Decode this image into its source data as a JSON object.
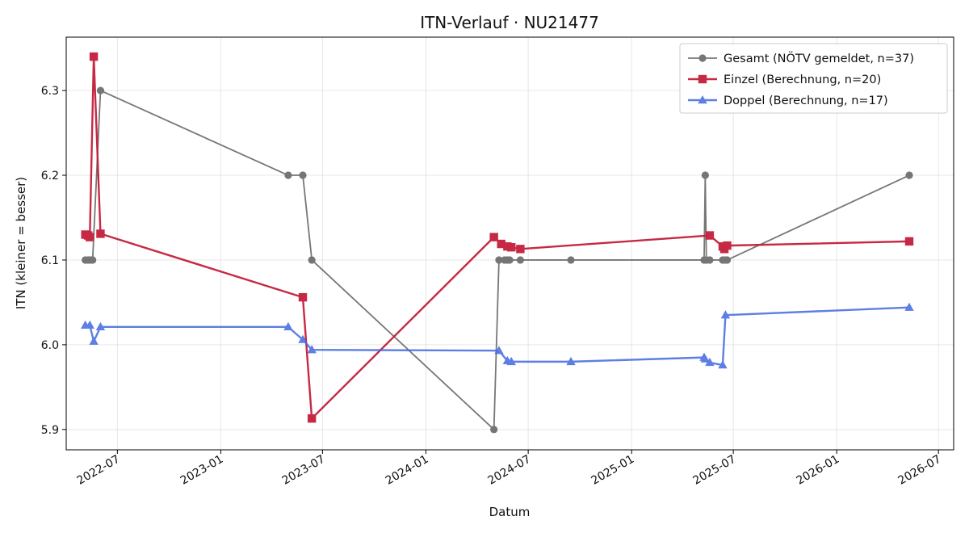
{
  "chart_data": {
    "type": "line",
    "title": "ITN-Verlauf · NU21477",
    "xlabel": "Datum",
    "ylabel": "ITN  (kleiner = besser)",
    "x_type": "date",
    "xlim": [
      "2022-04-01",
      "2026-07-28"
    ],
    "ylim": [
      5.876,
      6.363
    ],
    "x_ticks": [
      "2022-07-01",
      "2023-01-01",
      "2023-07-01",
      "2024-01-01",
      "2024-07-01",
      "2025-01-01",
      "2025-07-01",
      "2026-01-01",
      "2026-07-01"
    ],
    "x_tick_labels": [
      "2022-07",
      "2023-01",
      "2023-07",
      "2024-01",
      "2024-07",
      "2025-01",
      "2025-07",
      "2026-01",
      "2026-07"
    ],
    "y_ticks": [
      5.9,
      6.0,
      6.1,
      6.2,
      6.3
    ],
    "y_tick_labels": [
      "5.9",
      "6.0",
      "6.1",
      "6.2",
      "6.3"
    ],
    "grid": true,
    "legend_position": "top-right",
    "series": [
      {
        "name": "Gesamt (NÖTV gemeldet, n=37)",
        "color": "#555555",
        "marker": "circle",
        "line_width": 1.8,
        "opacity": 0.8,
        "points": [
          [
            "2022-05-05",
            6.1
          ],
          [
            "2022-05-10",
            6.1
          ],
          [
            "2022-05-13",
            6.1
          ],
          [
            "2022-05-16",
            6.1
          ],
          [
            "2022-05-18",
            6.1
          ],
          [
            "2022-06-01",
            6.3
          ],
          [
            "2023-05-01",
            6.2
          ],
          [
            "2023-05-27",
            6.2
          ],
          [
            "2023-06-12",
            6.1
          ],
          [
            "2024-05-01",
            5.9
          ],
          [
            "2024-05-10",
            6.1
          ],
          [
            "2024-05-20",
            6.1
          ],
          [
            "2024-05-25",
            6.1
          ],
          [
            "2024-05-29",
            6.1
          ],
          [
            "2024-06-17",
            6.1
          ],
          [
            "2024-09-15",
            6.1
          ],
          [
            "2025-05-10",
            6.1
          ],
          [
            "2025-05-12",
            6.2
          ],
          [
            "2025-05-14",
            6.1
          ],
          [
            "2025-05-20",
            6.1
          ],
          [
            "2025-06-12",
            6.1
          ],
          [
            "2025-06-17",
            6.1
          ],
          [
            "2025-06-20",
            6.1
          ],
          [
            "2026-05-10",
            6.2
          ]
        ]
      },
      {
        "name": "Einzel (Berechnung, n=20)",
        "color": "#c41e3a",
        "marker": "square",
        "line_width": 2.4,
        "opacity": 0.95,
        "points": [
          [
            "2022-05-05",
            6.13
          ],
          [
            "2022-05-10",
            6.129
          ],
          [
            "2022-05-13",
            6.127
          ],
          [
            "2022-05-20",
            6.34
          ],
          [
            "2022-06-01",
            6.131
          ],
          [
            "2023-05-27",
            6.056
          ],
          [
            "2023-06-12",
            5.913
          ],
          [
            "2024-05-01",
            6.127
          ],
          [
            "2024-05-14",
            6.119
          ],
          [
            "2024-05-25",
            6.116
          ],
          [
            "2024-06-01",
            6.115
          ],
          [
            "2024-06-17",
            6.113
          ],
          [
            "2025-05-20",
            6.129
          ],
          [
            "2025-06-12",
            6.116
          ],
          [
            "2025-06-15",
            6.113
          ],
          [
            "2025-06-20",
            6.117
          ],
          [
            "2026-05-10",
            6.122
          ]
        ]
      },
      {
        "name": "Doppel (Berechnung, n=17)",
        "color": "#4169e1",
        "marker": "triangle",
        "line_width": 2.4,
        "opacity": 0.85,
        "points": [
          [
            "2022-05-05",
            6.023
          ],
          [
            "2022-05-13",
            6.023
          ],
          [
            "2022-05-20",
            6.004
          ],
          [
            "2022-06-01",
            6.021
          ],
          [
            "2023-05-01",
            6.021
          ],
          [
            "2023-05-27",
            6.006
          ],
          [
            "2023-06-12",
            5.994
          ],
          [
            "2024-05-10",
            5.993
          ],
          [
            "2024-05-25",
            5.981
          ],
          [
            "2024-06-01",
            5.98
          ],
          [
            "2024-09-15",
            5.98
          ],
          [
            "2025-05-10",
            5.985
          ],
          [
            "2025-05-12",
            5.983
          ],
          [
            "2025-05-20",
            5.979
          ],
          [
            "2025-06-12",
            5.976
          ],
          [
            "2025-06-17",
            6.035
          ],
          [
            "2026-05-10",
            6.044
          ]
        ]
      }
    ]
  }
}
